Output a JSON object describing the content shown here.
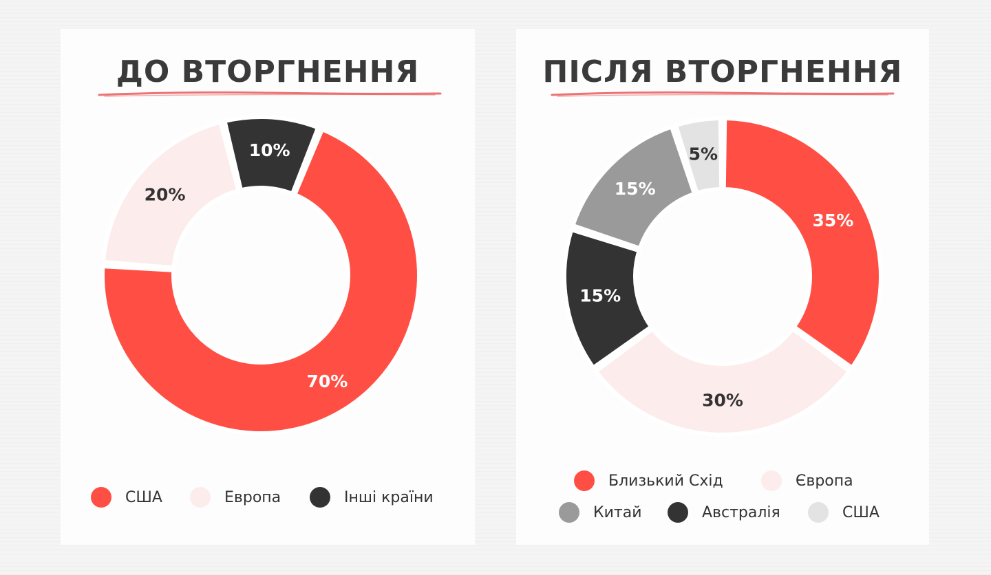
{
  "chart_data": [
    {
      "type": "pie",
      "title": "ДО ВТОРГНЕННЯ",
      "categories": [
        "США",
        "Европа",
        "Інші країни"
      ],
      "values": [
        70,
        20,
        10
      ],
      "labels": [
        "70%",
        "20%",
        "10%"
      ],
      "colors": [
        "#ff4f44",
        "#fdecec",
        "#333333"
      ],
      "label_colors": [
        "#ffffff",
        "#333333",
        "#ffffff"
      ],
      "legend": [
        {
          "label": "США",
          "color": "#ff4f44"
        },
        {
          "label": "Европа",
          "color": "#fdecec"
        },
        {
          "label": "Інші країни",
          "color": "#333333"
        }
      ]
    },
    {
      "type": "pie",
      "title": "ПІСЛЯ ВТОРГНЕННЯ",
      "categories": [
        "Близький Схід",
        "Європа",
        "Австралія",
        "Китай",
        "США"
      ],
      "values": [
        35,
        30,
        15,
        15,
        5
      ],
      "labels": [
        "35%",
        "30%",
        "15%",
        "15%",
        "5%"
      ],
      "colors": [
        "#ff4f44",
        "#fdecec",
        "#333333",
        "#9a9a9a",
        "#e3e3e3"
      ],
      "label_colors": [
        "#ffffff",
        "#333333",
        "#ffffff",
        "#ffffff",
        "#333333"
      ],
      "legend": [
        {
          "label": "Близький Схід",
          "color": "#ff4f44"
        },
        {
          "label": "Європа",
          "color": "#fdecec"
        },
        {
          "label": "Китай",
          "color": "#9a9a9a"
        },
        {
          "label": "Австралія",
          "color": "#333333"
        },
        {
          "label": "США",
          "color": "#e3e3e3"
        }
      ]
    }
  ]
}
